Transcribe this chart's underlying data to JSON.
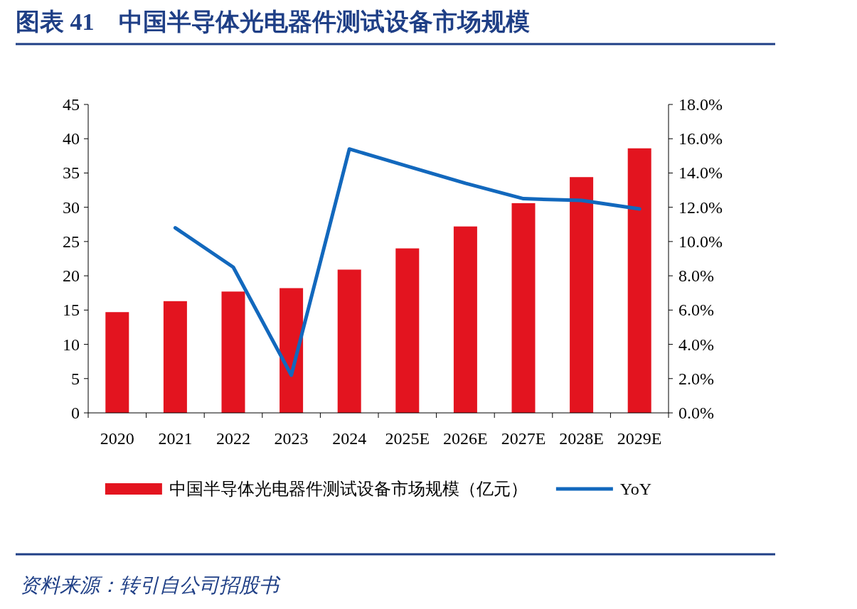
{
  "chart_data": {
    "type": "bar",
    "title": "图表 41　中国半导体光电器件测试设备市场规模",
    "categories": [
      "2020",
      "2021",
      "2022",
      "2023",
      "2024",
      "2025E",
      "2026E",
      "2027E",
      "2028E",
      "2029E"
    ],
    "series": [
      {
        "name": "中国半导体光电器件测试设备市场规模（亿元）",
        "color": "#e3141f",
        "values": [
          14.7,
          16.3,
          17.7,
          18.2,
          20.9,
          24.0,
          27.2,
          30.6,
          34.4,
          38.6
        ]
      },
      {
        "name": "YoY",
        "type": "line",
        "axis": "y2",
        "color": "#1268bd",
        "values": [
          null,
          10.8,
          8.5,
          2.2,
          15.4,
          14.4,
          13.4,
          12.5,
          12.4,
          11.9
        ]
      }
    ],
    "ylim": [
      0,
      45
    ],
    "yticks": [
      0,
      5,
      10,
      15,
      20,
      25,
      30,
      35,
      40,
      45
    ],
    "y2lim": [
      0,
      18
    ],
    "y2ticks": [
      {
        "value": 0,
        "label": "0.0%"
      },
      {
        "value": 2,
        "label": "2.0%"
      },
      {
        "value": 4,
        "label": "4.0%"
      },
      {
        "value": 6,
        "label": "6.0%"
      },
      {
        "value": 8,
        "label": "8.0%"
      },
      {
        "value": 10,
        "label": "10.0%"
      },
      {
        "value": 12,
        "label": "12.0%"
      },
      {
        "value": 14,
        "label": "14.0%"
      },
      {
        "value": 16,
        "label": "16.0%"
      },
      {
        "value": 18,
        "label": "18.0%"
      }
    ],
    "legend": "bottom",
    "grid": false,
    "annotations": [
      "资料来源：转引自公司招股书"
    ]
  }
}
